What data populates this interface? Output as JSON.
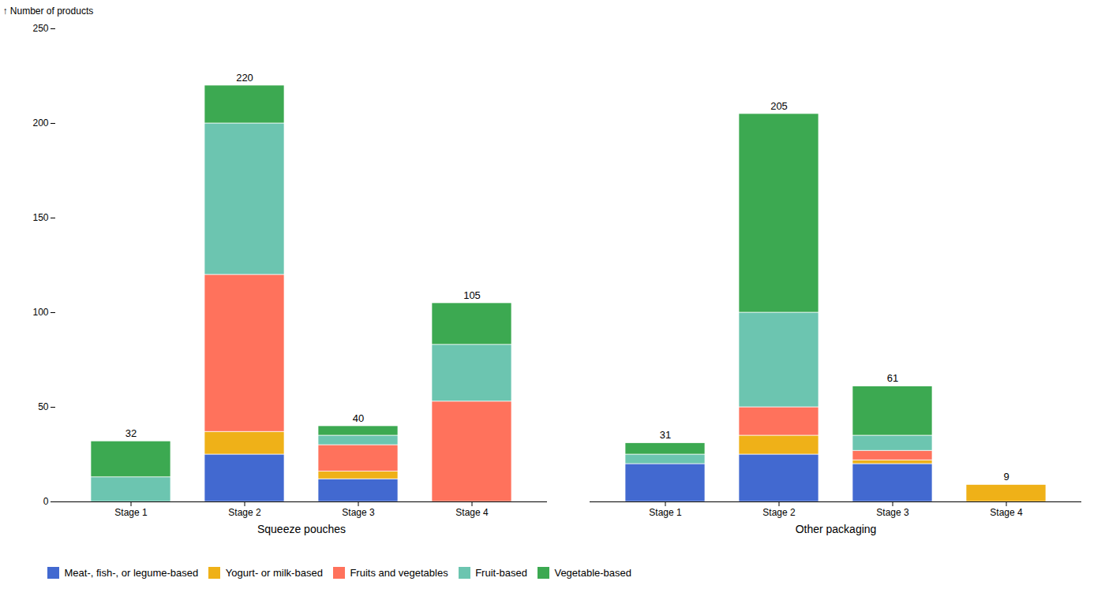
{
  "chart_data": {
    "type": "bar",
    "stacked": true,
    "grid": false,
    "legend": "bottom",
    "ylabel": "Number of products",
    "ylim": [
      0,
      250
    ],
    "yticks": [
      0,
      50,
      100,
      150,
      200,
      250
    ],
    "categories": [
      "Stage 1",
      "Stage 2",
      "Stage 3",
      "Stage 4"
    ],
    "groups": [
      {
        "name": "Squeeze pouches",
        "totals": [
          32,
          220,
          40,
          105
        ]
      },
      {
        "name": "Other packaging",
        "totals": [
          31,
          205,
          61,
          9
        ]
      }
    ],
    "series": [
      {
        "name": "Meat-, fish-, or legume-based",
        "values": [
          [
            0,
            25,
            12,
            0
          ],
          [
            20,
            25,
            20,
            0
          ]
        ]
      },
      {
        "name": "Yogurt- or milk-based",
        "values": [
          [
            0,
            12,
            4,
            0
          ],
          [
            0,
            10,
            2,
            9
          ]
        ]
      },
      {
        "name": "Fruits and vegetables",
        "values": [
          [
            0,
            83,
            14,
            53
          ],
          [
            0,
            15,
            5,
            0
          ]
        ]
      },
      {
        "name": "Fruit-based",
        "values": [
          [
            13,
            80,
            5,
            30
          ],
          [
            5,
            50,
            8,
            0
          ]
        ]
      },
      {
        "name": "Vegetable-based",
        "values": [
          [
            19,
            20,
            5,
            22
          ],
          [
            6,
            105,
            26,
            0
          ]
        ]
      }
    ]
  }
}
